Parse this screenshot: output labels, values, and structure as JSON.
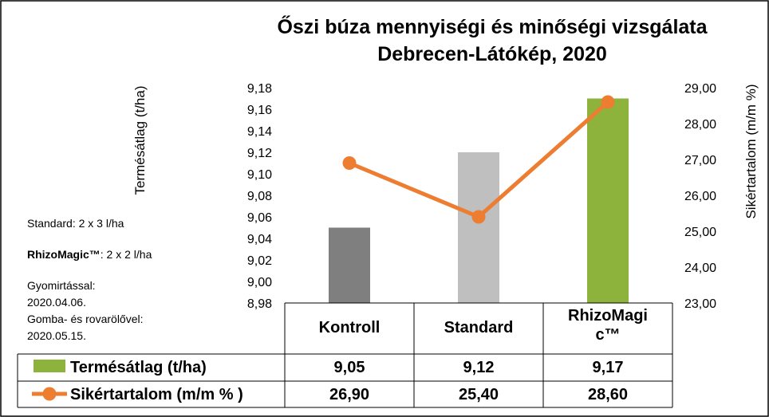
{
  "chart_data": {
    "type": "bar",
    "title": [
      "Őszi búza mennyiségi és minőségi vizsgálata",
      "Debrecen-Látókép, 2020"
    ],
    "categories": [
      [
        "Kontroll"
      ],
      [
        "Standard"
      ],
      [
        "RhizoMagi",
        "c™"
      ]
    ],
    "y_left": {
      "label": "Termésátlag (t/ha)",
      "range": [
        8.98,
        9.18
      ],
      "ticks": [
        "8,98",
        "9,00",
        "9,02",
        "9,04",
        "9,06",
        "9,08",
        "9,10",
        "9,12",
        "9,14",
        "9,16",
        "9,18"
      ]
    },
    "y_right": {
      "label": "Sikértartalom (m/m %)",
      "range": [
        23.0,
        29.0
      ],
      "ticks": [
        "23,00",
        "24,00",
        "25,00",
        "26,00",
        "27,00",
        "28,00",
        "29,00"
      ]
    },
    "series": [
      {
        "name": "Termésátlag (t/ha)",
        "type": "bar",
        "axis": "left",
        "values": [
          9.05,
          9.12,
          9.17
        ],
        "labels": [
          "9,05",
          "9,12",
          "9,17"
        ],
        "colors": [
          "#7f7f7f",
          "#bfbfbf",
          "#8db33c"
        ],
        "legend_color": "#8db33c"
      },
      {
        "name": "Sikértartalom (m/m % )",
        "type": "line",
        "axis": "right",
        "values": [
          26.9,
          25.4,
          28.6
        ],
        "labels": [
          "26,90",
          "25,40",
          "28,60"
        ],
        "color": "#ed7d31"
      }
    ],
    "legend_placement": "data-table",
    "grid": false
  },
  "notes": [
    {
      "parts": [
        {
          "text": "Standard: 2 x 3 l/ha",
          "bold": false
        }
      ]
    },
    {
      "parts": [
        {
          "text": "RhizoMagic™",
          "bold": true
        },
        {
          "text": ": 2 x 2 l/ha",
          "bold": false
        }
      ]
    },
    {
      "parts": [
        {
          "text": "Gyomirtással:",
          "bold": false
        }
      ]
    },
    {
      "parts": [
        {
          "text": "2020.04.06.",
          "bold": false
        }
      ]
    },
    {
      "parts": [
        {
          "text": "Gomba- és rovarölővel:",
          "bold": false
        }
      ]
    },
    {
      "parts": [
        {
          "text": "2020.05.15.",
          "bold": false
        }
      ]
    }
  ]
}
